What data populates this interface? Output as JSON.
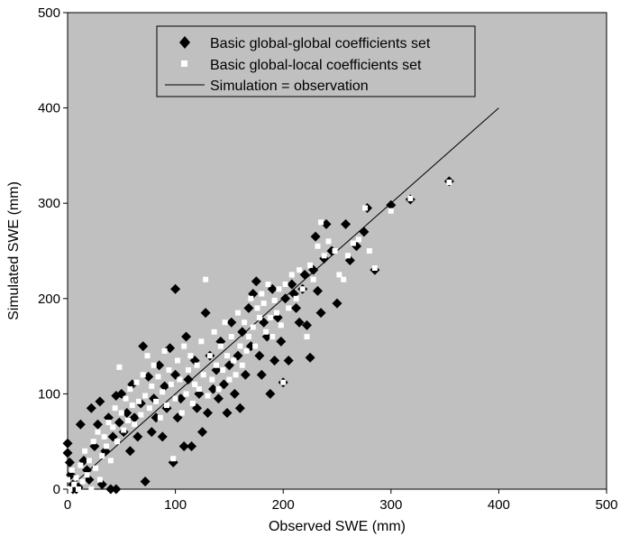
{
  "chart_data": {
    "type": "scatter",
    "title": "",
    "xlabel": "Observed SWE (mm)",
    "ylabel": "Simulated SWE (mm)",
    "xlim": [
      0,
      500
    ],
    "ylim": [
      0,
      500
    ],
    "xticks": [
      "0",
      "100",
      "200",
      "300",
      "400",
      "500"
    ],
    "yticks": [
      "0",
      "100",
      "200",
      "300",
      "400",
      "500"
    ],
    "grid": false,
    "legend_position": "top-center",
    "plot_background": "#c0c0c0",
    "series": [
      {
        "name": "Basic global-global coefficients set",
        "marker": "diamond",
        "color": "#000000",
        "points": [
          [
            0,
            48
          ],
          [
            0,
            38
          ],
          [
            2,
            28
          ],
          [
            3,
            15
          ],
          [
            5,
            5
          ],
          [
            5,
            0
          ],
          [
            8,
            0
          ],
          [
            10,
            2
          ],
          [
            12,
            68
          ],
          [
            15,
            30
          ],
          [
            18,
            20
          ],
          [
            20,
            10
          ],
          [
            22,
            85
          ],
          [
            25,
            45
          ],
          [
            28,
            68
          ],
          [
            30,
            92
          ],
          [
            32,
            5
          ],
          [
            35,
            40
          ],
          [
            38,
            75
          ],
          [
            40,
            0
          ],
          [
            42,
            55
          ],
          [
            45,
            0
          ],
          [
            45,
            98
          ],
          [
            48,
            70
          ],
          [
            50,
            100
          ],
          [
            52,
            60
          ],
          [
            55,
            80
          ],
          [
            58,
            40
          ],
          [
            60,
            110
          ],
          [
            62,
            75
          ],
          [
            65,
            55
          ],
          [
            68,
            90
          ],
          [
            70,
            150
          ],
          [
            72,
            8
          ],
          [
            75,
            118
          ],
          [
            78,
            60
          ],
          [
            80,
            95
          ],
          [
            82,
            75
          ],
          [
            85,
            130
          ],
          [
            88,
            55
          ],
          [
            90,
            108
          ],
          [
            92,
            85
          ],
          [
            95,
            148
          ],
          [
            98,
            28
          ],
          [
            100,
            210
          ],
          [
            100,
            120
          ],
          [
            102,
            75
          ],
          [
            105,
            95
          ],
          [
            108,
            45
          ],
          [
            110,
            160
          ],
          [
            112,
            115
          ],
          [
            115,
            45
          ],
          [
            118,
            135
          ],
          [
            120,
            85
          ],
          [
            122,
            100
          ],
          [
            125,
            60
          ],
          [
            128,
            185
          ],
          [
            130,
            80
          ],
          [
            132,
            140
          ],
          [
            135,
            105
          ],
          [
            138,
            125
          ],
          [
            140,
            95
          ],
          [
            142,
            155
          ],
          [
            145,
            110
          ],
          [
            148,
            80
          ],
          [
            150,
            130
          ],
          [
            152,
            175
          ],
          [
            155,
            100
          ],
          [
            158,
            140
          ],
          [
            160,
            85
          ],
          [
            162,
            165
          ],
          [
            165,
            120
          ],
          [
            168,
            190
          ],
          [
            170,
            150
          ],
          [
            172,
            205
          ],
          [
            175,
            218
          ],
          [
            178,
            140
          ],
          [
            180,
            120
          ],
          [
            182,
            175
          ],
          [
            185,
            160
          ],
          [
            188,
            100
          ],
          [
            190,
            210
          ],
          [
            192,
            135
          ],
          [
            195,
            180
          ],
          [
            198,
            155
          ],
          [
            200,
            112
          ],
          [
            202,
            200
          ],
          [
            205,
            135
          ],
          [
            208,
            215
          ],
          [
            210,
            205
          ],
          [
            212,
            190
          ],
          [
            215,
            175
          ],
          [
            218,
            210
          ],
          [
            220,
            225
          ],
          [
            222,
            172
          ],
          [
            225,
            138
          ],
          [
            228,
            230
          ],
          [
            230,
            265
          ],
          [
            232,
            208
          ],
          [
            235,
            185
          ],
          [
            238,
            242
          ],
          [
            240,
            278
          ],
          [
            245,
            250
          ],
          [
            250,
            195
          ],
          [
            258,
            278
          ],
          [
            262,
            240
          ],
          [
            268,
            255
          ],
          [
            275,
            270
          ],
          [
            278,
            295
          ],
          [
            285,
            230
          ],
          [
            300,
            298
          ],
          [
            318,
            304
          ],
          [
            354,
            323
          ]
        ]
      },
      {
        "name": "Basic global-local coefficients set",
        "marker": "square",
        "color": "#ffffff",
        "points": [
          [
            0,
            10
          ],
          [
            2,
            0
          ],
          [
            4,
            20
          ],
          [
            6,
            5
          ],
          [
            8,
            12
          ],
          [
            10,
            0
          ],
          [
            12,
            25
          ],
          [
            14,
            8
          ],
          [
            16,
            40
          ],
          [
            18,
            15
          ],
          [
            20,
            30
          ],
          [
            22,
            0
          ],
          [
            24,
            50
          ],
          [
            26,
            22
          ],
          [
            28,
            60
          ],
          [
            30,
            10
          ],
          [
            32,
            35
          ],
          [
            34,
            55
          ],
          [
            36,
            45
          ],
          [
            38,
            70
          ],
          [
            40,
            30
          ],
          [
            42,
            65
          ],
          [
            44,
            85
          ],
          [
            46,
            50
          ],
          [
            48,
            128
          ],
          [
            50,
            80
          ],
          [
            52,
            62
          ],
          [
            54,
            95
          ],
          [
            56,
            72
          ],
          [
            58,
            105
          ],
          [
            60,
            88
          ],
          [
            62,
            68
          ],
          [
            64,
            112
          ],
          [
            66,
            92
          ],
          [
            68,
            78
          ],
          [
            70,
            120
          ],
          [
            72,
            98
          ],
          [
            74,
            140
          ],
          [
            76,
            85
          ],
          [
            78,
            108
          ],
          [
            80,
            130
          ],
          [
            82,
            92
          ],
          [
            84,
            118
          ],
          [
            86,
            75
          ],
          [
            88,
            102
          ],
          [
            90,
            145
          ],
          [
            92,
            88
          ],
          [
            94,
            125
          ],
          [
            96,
            110
          ],
          [
            98,
            32
          ],
          [
            100,
            95
          ],
          [
            102,
            135
          ],
          [
            104,
            115
          ],
          [
            106,
            80
          ],
          [
            108,
            150
          ],
          [
            110,
            100
          ],
          [
            112,
            125
          ],
          [
            114,
            140
          ],
          [
            116,
            90
          ],
          [
            118,
            110
          ],
          [
            120,
            130
          ],
          [
            122,
            105
          ],
          [
            124,
            155
          ],
          [
            126,
            120
          ],
          [
            128,
            220
          ],
          [
            130,
            98
          ],
          [
            132,
            140
          ],
          [
            134,
            115
          ],
          [
            136,
            165
          ],
          [
            138,
            130
          ],
          [
            140,
            105
          ],
          [
            142,
            150
          ],
          [
            144,
            125
          ],
          [
            146,
            175
          ],
          [
            148,
            140
          ],
          [
            150,
            115
          ],
          [
            152,
            160
          ],
          [
            154,
            135
          ],
          [
            156,
            120
          ],
          [
            158,
            185
          ],
          [
            160,
            150
          ],
          [
            162,
            130
          ],
          [
            164,
            175
          ],
          [
            166,
            145
          ],
          [
            168,
            160
          ],
          [
            170,
            200
          ],
          [
            172,
            170
          ],
          [
            174,
            150
          ],
          [
            176,
            190
          ],
          [
            178,
            180
          ],
          [
            180,
            205
          ],
          [
            182,
            195
          ],
          [
            184,
            165
          ],
          [
            186,
            215
          ],
          [
            188,
            180
          ],
          [
            190,
            160
          ],
          [
            192,
            198
          ],
          [
            194,
            185
          ],
          [
            196,
            210
          ],
          [
            198,
            172
          ],
          [
            200,
            112
          ],
          [
            202,
            215
          ],
          [
            205,
            190
          ],
          [
            208,
            225
          ],
          [
            212,
            200
          ],
          [
            215,
            230
          ],
          [
            218,
            210
          ],
          [
            222,
            160
          ],
          [
            225,
            235
          ],
          [
            228,
            220
          ],
          [
            232,
            255
          ],
          [
            235,
            280
          ],
          [
            238,
            245
          ],
          [
            242,
            260
          ],
          [
            248,
            250
          ],
          [
            252,
            225
          ],
          [
            256,
            220
          ],
          [
            260,
            245
          ],
          [
            265,
            258
          ],
          [
            270,
            262
          ],
          [
            276,
            295
          ],
          [
            280,
            250
          ],
          [
            285,
            232
          ],
          [
            300,
            292
          ],
          [
            318,
            305
          ],
          [
            354,
            322
          ]
        ]
      },
      {
        "name": "Simulation = observation",
        "marker": "line",
        "color": "#000000",
        "points": [
          [
            0,
            0
          ],
          [
            400,
            400
          ]
        ]
      }
    ]
  }
}
